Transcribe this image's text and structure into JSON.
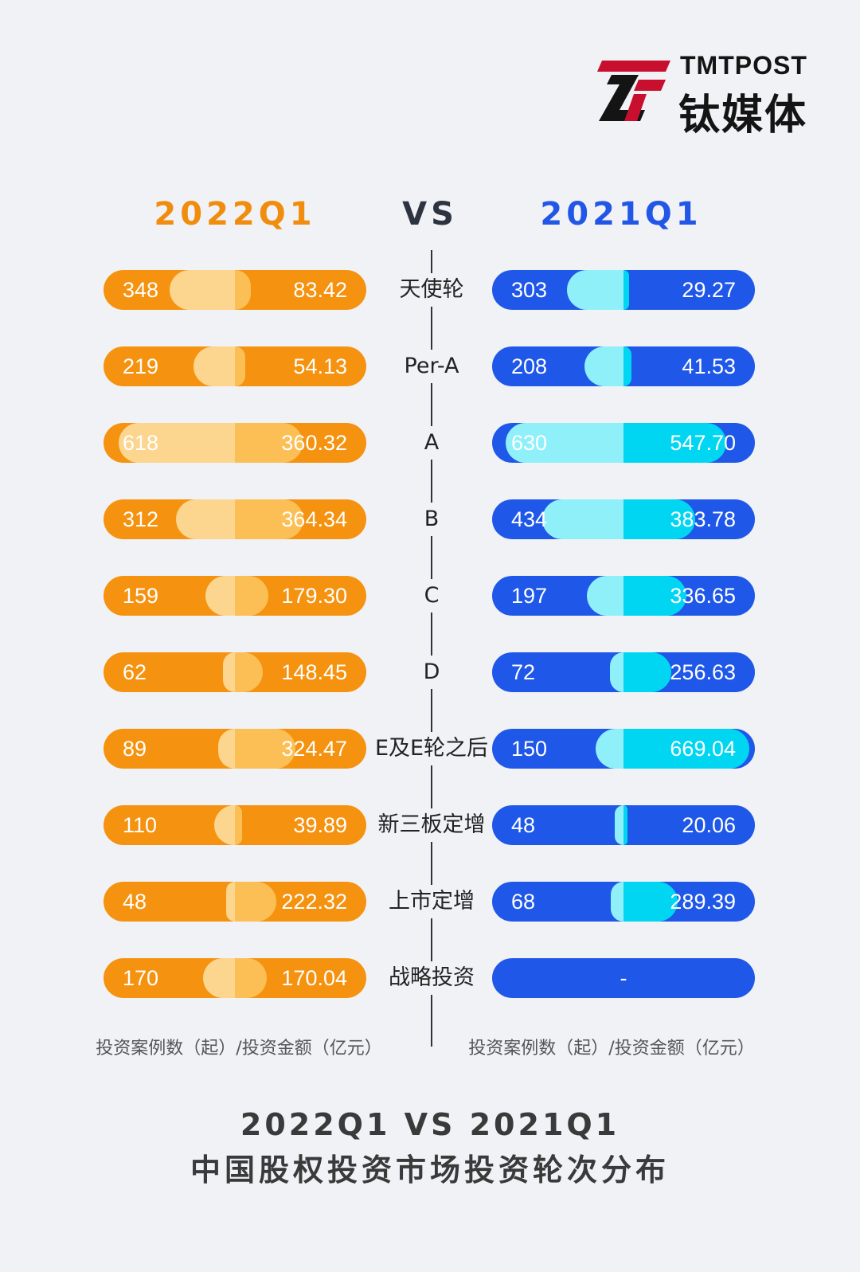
{
  "logo": {
    "en": "TMTPOST",
    "cn": "钛媒体"
  },
  "header": {
    "left": "2022Q1",
    "vs": "VS",
    "right": "2021Q1"
  },
  "chart_data": {
    "type": "bar",
    "title": "2022Q1 VS 2021Q1",
    "subtitle": "中国股权投资市场投资轮次分布",
    "unit_label": "投资案例数（起）/投资金额（亿元）",
    "categories": [
      "天使轮",
      "Per-A",
      "A",
      "B",
      "C",
      "D",
      "E及E轮之后",
      "新三板定增",
      "上市定增",
      "战略投资"
    ],
    "series": [
      {
        "name": "2022Q1",
        "cases": [
          "348",
          "219",
          "618",
          "312",
          "159",
          "62",
          "89",
          "110",
          "48",
          "170"
        ],
        "amounts": [
          "83.42",
          "54.13",
          "360.32",
          "364.34",
          "179.30",
          "148.45",
          "324.47",
          "39.89",
          "222.32",
          "170.04"
        ]
      },
      {
        "name": "2021Q1",
        "cases": [
          "303",
          "208",
          "630",
          "434",
          "197",
          "72",
          "150",
          "48",
          "68",
          null
        ],
        "amounts": [
          "29.27",
          "41.53",
          "547.70",
          "383.78",
          "336.65",
          "256.63",
          "669.04",
          "20.06",
          "289.39",
          null
        ],
        "missing_label": "-"
      }
    ]
  },
  "colors": {
    "left_base": "#f5920f",
    "left_cases": "#fcd58f",
    "left_amount": "#fbbf55",
    "right_base": "#1f57e8",
    "right_cases": "#8ff0fa",
    "right_amount": "#00d6f2"
  },
  "footer": {
    "left_unit": "投资案例数（起）/投资金额（亿元）",
    "right_unit": "投资案例数（起）/投资金额（亿元）",
    "title_line1": "2022Q1 VS 2021Q1",
    "title_line2": "中国股权投资市场投资轮次分布"
  }
}
